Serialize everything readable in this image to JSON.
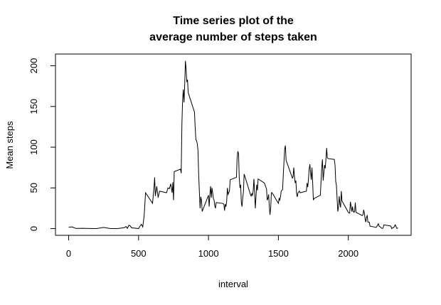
{
  "chart_data": {
    "type": "line",
    "title": [
      "Time series plot of the",
      "average number of steps taken"
    ],
    "x_label": "interval",
    "y_label": "Mean steps",
    "color": "#000000",
    "x": [
      0,
      25,
      50,
      100,
      150,
      200,
      250,
      300,
      350,
      400,
      410,
      420,
      430,
      440,
      450,
      500,
      510,
      520,
      530,
      540,
      550,
      600,
      610,
      615,
      620,
      630,
      640,
      650,
      700,
      710,
      720,
      730,
      740,
      745,
      750,
      755,
      800,
      805,
      810,
      815,
      820,
      825,
      830,
      835,
      840,
      845,
      850,
      855,
      900,
      905,
      910,
      915,
      920,
      925,
      930,
      935,
      940,
      945,
      950,
      955,
      1000,
      1005,
      1010,
      1015,
      1020,
      1025,
      1030,
      1035,
      1040,
      1045,
      1050,
      1055,
      1100,
      1110,
      1115,
      1120,
      1125,
      1130,
      1135,
      1140,
      1145,
      1150,
      1155,
      1200,
      1205,
      1210,
      1215,
      1220,
      1225,
      1230,
      1235,
      1240,
      1245,
      1250,
      1255,
      1300,
      1305,
      1310,
      1315,
      1320,
      1325,
      1330,
      1335,
      1340,
      1345,
      1350,
      1355,
      1400,
      1410,
      1415,
      1420,
      1425,
      1430,
      1435,
      1440,
      1445,
      1450,
      1455,
      1500,
      1505,
      1510,
      1515,
      1520,
      1525,
      1530,
      1535,
      1540,
      1545,
      1550,
      1555,
      1600,
      1605,
      1610,
      1615,
      1620,
      1625,
      1630,
      1635,
      1640,
      1645,
      1650,
      1655,
      1700,
      1705,
      1710,
      1715,
      1720,
      1725,
      1730,
      1735,
      1740,
      1745,
      1750,
      1755,
      1800,
      1805,
      1810,
      1815,
      1820,
      1825,
      1830,
      1835,
      1840,
      1845,
      1850,
      1855,
      1900,
      1905,
      1910,
      1915,
      1920,
      1925,
      1930,
      1935,
      1940,
      1945,
      1950,
      1955,
      2000,
      2005,
      2010,
      2015,
      2020,
      2025,
      2030,
      2035,
      2040,
      2045,
      2050,
      2055,
      2100,
      2105,
      2110,
      2115,
      2120,
      2125,
      2130,
      2135,
      2140,
      2145,
      2150,
      2155,
      2200,
      2210,
      2215,
      2220,
      2230,
      2240,
      2245,
      2250,
      2255,
      2300,
      2305,
      2310,
      2315,
      2320,
      2325,
      2330,
      2335,
      2340,
      2345,
      2350,
      2355
    ],
    "values": [
      1.7,
      2.1,
      0.3,
      0.4,
      0.2,
      0,
      1.5,
      0,
      0,
      1.2,
      2.6,
      0.3,
      4.1,
      3.5,
      1,
      0,
      3,
      5.3,
      2,
      16,
      44,
      31,
      50,
      63,
      40,
      52,
      38,
      46,
      44,
      50,
      49,
      55,
      44,
      57,
      35,
      70,
      73,
      68,
      129,
      158,
      171,
      155,
      177,
      206,
      196,
      180,
      183,
      167,
      143,
      124,
      109,
      108,
      104,
      96,
      66,
      45,
      25,
      39,
      35,
      21,
      41,
      27,
      42,
      52,
      38,
      50,
      44,
      37,
      35,
      28,
      25,
      32,
      31,
      30,
      22,
      30,
      27,
      33,
      50,
      42,
      44,
      46,
      60,
      63,
      87,
      95,
      92,
      63,
      50,
      54,
      32,
      27,
      38,
      45,
      67,
      42,
      40,
      43,
      41,
      47,
      61,
      44,
      25,
      40,
      54,
      47,
      61,
      56,
      51,
      49,
      35,
      37,
      42,
      27,
      17,
      26,
      44,
      44,
      31,
      37,
      35,
      39,
      46,
      47,
      48,
      66,
      82,
      98,
      102,
      84,
      62,
      64,
      75,
      63,
      56,
      59,
      43,
      39,
      44,
      45,
      46,
      44,
      46,
      56,
      51,
      61,
      73,
      79,
      69,
      60,
      75,
      57,
      35,
      37,
      41,
      58,
      75,
      85,
      59,
      68,
      78,
      74,
      85,
      99,
      87,
      86,
      85,
      78,
      58,
      53,
      36,
      21,
      27,
      40,
      30,
      26,
      46,
      34,
      20,
      19,
      19,
      33,
      27,
      21,
      27,
      21,
      20,
      21,
      32,
      20,
      16,
      17,
      23,
      19,
      12,
      8,
      14,
      16,
      8,
      8,
      8,
      3,
      1.5,
      4.6,
      6,
      3,
      2,
      0.3,
      0.1,
      1.6,
      4.6,
      3.3,
      2.8,
      0,
      0.8,
      1,
      1.6,
      2.6,
      4.7,
      3.3,
      0.6,
      0.2,
      1.1
    ],
    "xlim": [
      -94.2,
      2449.2
    ],
    "ylim": [
      -8.25,
      214.42
    ],
    "xticks": [
      0,
      500,
      1000,
      1500,
      2000
    ],
    "yticks": [
      0,
      50,
      100,
      150,
      200
    ]
  }
}
